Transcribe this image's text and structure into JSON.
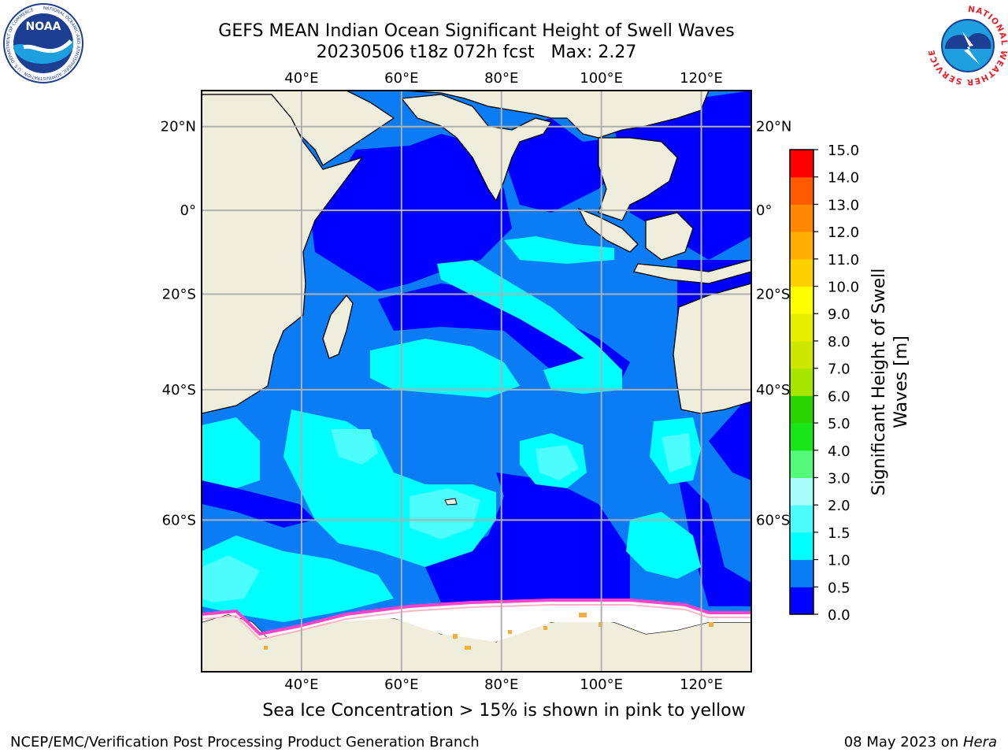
{
  "title": {
    "line1": "GEFS MEAN Indian Ocean Significant Height of Swell Waves",
    "line2": "20230506 t18z 072h fcst   Max: 2.27"
  },
  "logos": {
    "left": {
      "icon": "noaa-logo",
      "text": "NOAA",
      "ring_text": "NATIONAL OCEANIC AND ATMOSPHERIC ADMINISTRATION · U.S. DEPARTMENT OF COMMERCE"
    },
    "right": {
      "icon": "nws-logo",
      "ring_text": "NATIONAL WEATHER SERVICE"
    }
  },
  "map": {
    "lon_range": [
      20,
      130
    ],
    "lat_range": [
      -74,
      28
    ],
    "lon_ticks": [
      {
        "value": 40,
        "label": "40°E"
      },
      {
        "value": 60,
        "label": "60°E"
      },
      {
        "value": 80,
        "label": "80°E"
      },
      {
        "value": 100,
        "label": "100°E"
      },
      {
        "value": 120,
        "label": "120°E"
      }
    ],
    "lat_ticks": [
      {
        "value": 20,
        "label": "20°N"
      },
      {
        "value": 0,
        "label": "0°"
      },
      {
        "value": -20,
        "label": "20°S"
      },
      {
        "value": -40,
        "label": "40°S"
      },
      {
        "value": -60,
        "label": "60°S"
      }
    ],
    "grid": true,
    "ocean_color": "#0a7cf5",
    "land_color": "#efeedc",
    "coast_color": "#000000"
  },
  "colorbar": {
    "label_line1": "Significant Height of Swell",
    "label_line2": "Waves [m]",
    "levels": [
      "0.0",
      "0.5",
      "1.0",
      "1.5",
      "2.0",
      "3.0",
      "4.0",
      "5.0",
      "6.0",
      "7.0",
      "8.0",
      "9.0",
      "10.0",
      "11.0",
      "12.0",
      "13.0",
      "14.0",
      "15.0"
    ],
    "colors": [
      "#0000ff",
      "#0a7cf5",
      "#00ffff",
      "#4dfcfc",
      "#a8fff9",
      "#55fa7a",
      "#19e619",
      "#2bd300",
      "#a6e600",
      "#cde600",
      "#e6ee00",
      "#ffff00",
      "#ffd000",
      "#ffad00",
      "#ff8800",
      "#ff5a00",
      "#ff0000"
    ]
  },
  "ice_note": "Sea Ice Concentration > 15% is shown in pink to yellow",
  "footer": {
    "left": "NCEP/EMC/Verification Post Processing Product Generation Branch",
    "right_prefix": "08 May 2023 on ",
    "right_host": "Hera"
  }
}
